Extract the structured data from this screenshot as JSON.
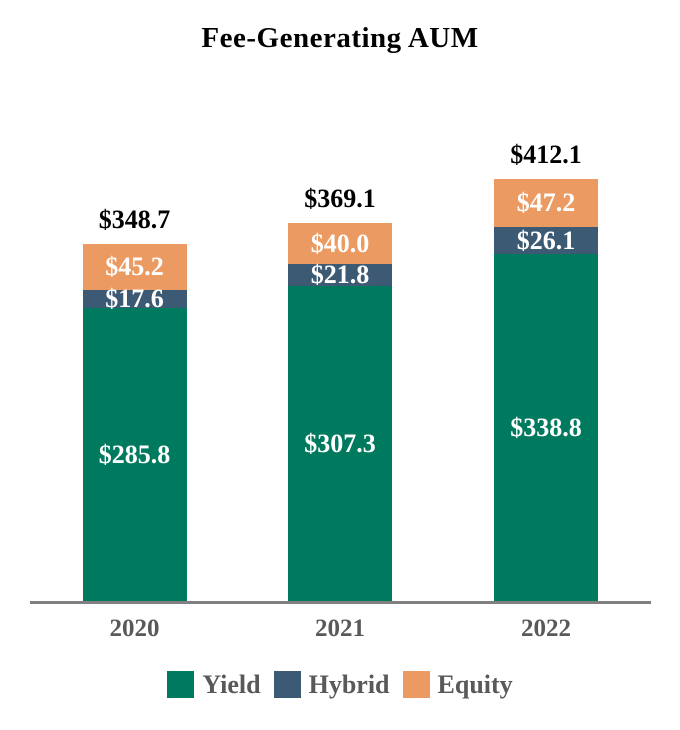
{
  "chart_data": {
    "type": "bar",
    "stacked": true,
    "title": "Fee-Generating AUM",
    "xlabel": "",
    "ylabel": "",
    "grid": false,
    "legend_position": "bottom",
    "ylim": [
      0,
      430
    ],
    "categories": [
      "2020",
      "2021",
      "2022"
    ],
    "series": [
      {
        "name": "Yield",
        "color": "#007A5E",
        "values": [
          285.8,
          307.3,
          338.8
        ],
        "labels": [
          "$285.8",
          "$307.3",
          "$338.8"
        ]
      },
      {
        "name": "Hybrid",
        "color": "#3D5A74",
        "values": [
          17.6,
          21.8,
          26.1
        ],
        "labels": [
          "$17.6",
          "$21.8",
          "$26.1"
        ]
      },
      {
        "name": "Equity",
        "color": "#EB9A62",
        "values": [
          45.2,
          40.0,
          47.2
        ],
        "labels": [
          "$45.2",
          "$40.0",
          "$47.2"
        ]
      }
    ],
    "totals": [
      348.7,
      369.1,
      412.1
    ],
    "total_labels": [
      "$348.7",
      "$369.1",
      "$412.1"
    ]
  },
  "legend": {
    "items": [
      {
        "label": "Yield",
        "color": "#007A5E"
      },
      {
        "label": "Hybrid",
        "color": "#3D5A74"
      },
      {
        "label": "Equity",
        "color": "#EB9A62"
      }
    ]
  },
  "colors": {
    "axis_line": "#808080",
    "tick_label": "#595959",
    "legend_label": "#595959",
    "total_label": "#000000",
    "segment_label": "#FFFFFF",
    "background": "#FFFFFF"
  }
}
